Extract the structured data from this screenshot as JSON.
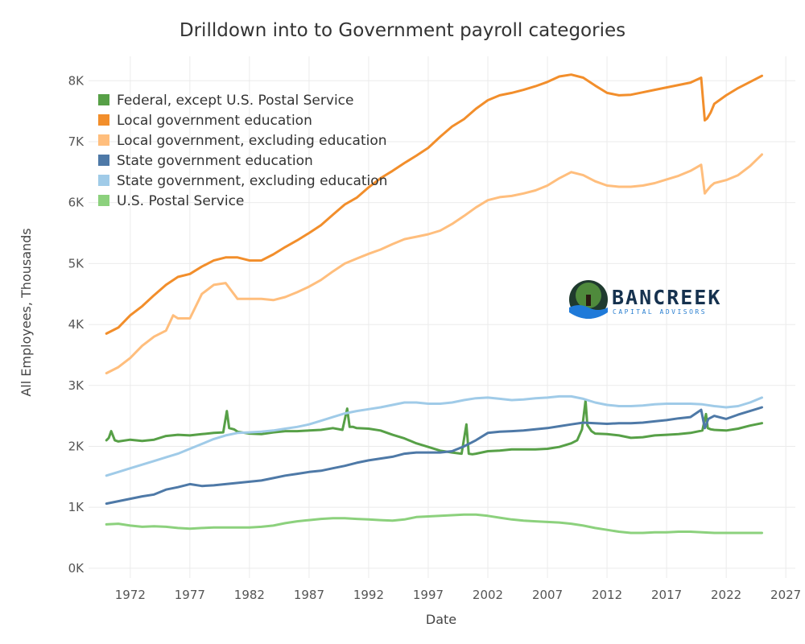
{
  "chart_data": {
    "type": "line",
    "title": "Drilldown into to Government payroll categories",
    "xlabel": "Date",
    "ylabel": "All Employees, Thousands",
    "xlim": [
      1968.5,
      2027.8
    ],
    "ylim": [
      -160,
      8400
    ],
    "x_ticks": [
      1972,
      1977,
      1982,
      1987,
      1992,
      1997,
      2002,
      2007,
      2012,
      2017,
      2022,
      2027
    ],
    "y_ticks": [
      {
        "value": 0,
        "label": "0K"
      },
      {
        "value": 1000,
        "label": "1K"
      },
      {
        "value": 2000,
        "label": "2K"
      },
      {
        "value": 3000,
        "label": "3K"
      },
      {
        "value": 4000,
        "label": "4K"
      },
      {
        "value": 5000,
        "label": "5K"
      },
      {
        "value": 6000,
        "label": "6K"
      },
      {
        "value": 7000,
        "label": "7K"
      },
      {
        "value": 8000,
        "label": "8K"
      }
    ],
    "grid": true,
    "legend_position": "top-left",
    "series": [
      {
        "name": "Federal, except U.S. Postal Service",
        "color": "#57a047",
        "x": [
          1970,
          1970.2,
          1970.4,
          1970.7,
          1971,
          1972,
          1973,
          1974,
          1975,
          1976,
          1977,
          1978,
          1979,
          1979.8,
          1980.1,
          1980.3,
          1980.7,
          1981,
          1982,
          1983,
          1984,
          1985,
          1986,
          1987,
          1988,
          1989,
          1989.8,
          1990.2,
          1990.4,
          1990.7,
          1991,
          1992,
          1993,
          1994,
          1995,
          1996,
          1997,
          1998,
          1999,
          1999.8,
          2000.2,
          2000.4,
          2000.7,
          2001,
          2002,
          2003,
          2004,
          2005,
          2006,
          2007,
          2008,
          2009,
          2009.5,
          2009.9,
          2010.2,
          2010.35,
          2010.7,
          2011,
          2012,
          2013,
          2014,
          2015,
          2016,
          2017,
          2018,
          2019,
          2020,
          2020.3,
          2020.45,
          2020.7,
          2021,
          2022,
          2023,
          2024,
          2025
        ],
        "y": [
          2100,
          2140,
          2250,
          2100,
          2080,
          2110,
          2090,
          2110,
          2170,
          2190,
          2180,
          2200,
          2220,
          2230,
          2580,
          2300,
          2280,
          2240,
          2210,
          2200,
          2230,
          2250,
          2250,
          2260,
          2270,
          2300,
          2270,
          2620,
          2320,
          2320,
          2300,
          2290,
          2260,
          2190,
          2130,
          2050,
          1990,
          1930,
          1900,
          1880,
          2360,
          1880,
          1870,
          1880,
          1920,
          1930,
          1950,
          1950,
          1950,
          1960,
          1990,
          2050,
          2100,
          2280,
          2750,
          2350,
          2250,
          2210,
          2200,
          2180,
          2140,
          2150,
          2180,
          2190,
          2200,
          2220,
          2260,
          2530,
          2300,
          2280,
          2270,
          2260,
          2290,
          2340,
          2380
        ]
      },
      {
        "name": "Local government education",
        "color": "#f28e2b",
        "x": [
          1970,
          1971,
          1972,
          1973,
          1974,
          1975,
          1976,
          1977,
          1978,
          1979,
          1980,
          1981,
          1982,
          1983,
          1984,
          1985,
          1986,
          1987,
          1988,
          1989,
          1990,
          1991,
          1992,
          1993,
          1994,
          1995,
          1996,
          1997,
          1998,
          1999,
          2000,
          2001,
          2002,
          2003,
          2004,
          2005,
          2006,
          2007,
          2008,
          2009,
          2010,
          2011,
          2012,
          2013,
          2014,
          2015,
          2016,
          2017,
          2018,
          2019,
          2019.9,
          2020.2,
          2020.4,
          2020.7,
          2021,
          2022,
          2023,
          2024,
          2025
        ],
        "y": [
          3850,
          3950,
          4150,
          4300,
          4480,
          4650,
          4780,
          4830,
          4950,
          5050,
          5100,
          5100,
          5050,
          5050,
          5150,
          5270,
          5380,
          5500,
          5630,
          5800,
          5970,
          6080,
          6250,
          6400,
          6520,
          6650,
          6770,
          6900,
          7080,
          7250,
          7370,
          7540,
          7680,
          7760,
          7800,
          7850,
          7910,
          7980,
          8070,
          8100,
          8050,
          7920,
          7800,
          7760,
          7770,
          7810,
          7850,
          7890,
          7930,
          7970,
          8050,
          7350,
          7380,
          7480,
          7620,
          7760,
          7880,
          7980,
          8080
        ]
      },
      {
        "name": "Local government, excluding education",
        "color": "#ffbe7d",
        "x": [
          1970,
          1971,
          1972,
          1973,
          1974,
          1975,
          1975.6,
          1976,
          1977,
          1978,
          1979,
          1980,
          1981,
          1982,
          1983,
          1984,
          1985,
          1986,
          1987,
          1988,
          1989,
          1990,
          1991,
          1992,
          1993,
          1994,
          1995,
          1996,
          1997,
          1998,
          1999,
          2000,
          2001,
          2002,
          2003,
          2004,
          2005,
          2006,
          2007,
          2008,
          2009,
          2010,
          2011,
          2012,
          2013,
          2014,
          2015,
          2016,
          2017,
          2018,
          2019,
          2019.9,
          2020.2,
          2020.4,
          2020.7,
          2021,
          2022,
          2023,
          2024,
          2025
        ],
        "y": [
          3200,
          3300,
          3450,
          3650,
          3800,
          3900,
          4150,
          4100,
          4100,
          4500,
          4650,
          4680,
          4420,
          4420,
          4420,
          4400,
          4450,
          4530,
          4620,
          4730,
          4870,
          5000,
          5080,
          5160,
          5230,
          5320,
          5400,
          5440,
          5480,
          5540,
          5650,
          5780,
          5920,
          6040,
          6090,
          6110,
          6150,
          6200,
          6280,
          6400,
          6500,
          6450,
          6350,
          6280,
          6260,
          6260,
          6280,
          6320,
          6380,
          6440,
          6520,
          6620,
          6150,
          6200,
          6270,
          6320,
          6370,
          6450,
          6600,
          6790
        ]
      },
      {
        "name": "State government education",
        "color": "#4e79a7",
        "x": [
          1970,
          1971,
          1972,
          1973,
          1974,
          1975,
          1976,
          1977,
          1978,
          1979,
          1980,
          1981,
          1982,
          1983,
          1984,
          1985,
          1986,
          1987,
          1988,
          1989,
          1990,
          1991,
          1992,
          1993,
          1994,
          1995,
          1996,
          1997,
          1998,
          1999,
          2000,
          2001,
          2002,
          2003,
          2004,
          2005,
          2006,
          2007,
          2008,
          2009,
          2010,
          2011,
          2012,
          2013,
          2014,
          2015,
          2016,
          2017,
          2018,
          2019,
          2019.9,
          2020.2,
          2020.5,
          2021,
          2022,
          2023,
          2024,
          2025
        ],
        "y": [
          1060,
          1100,
          1140,
          1180,
          1210,
          1290,
          1330,
          1380,
          1350,
          1360,
          1380,
          1400,
          1420,
          1440,
          1480,
          1520,
          1550,
          1580,
          1600,
          1640,
          1680,
          1730,
          1770,
          1800,
          1830,
          1880,
          1900,
          1900,
          1900,
          1920,
          2000,
          2100,
          2220,
          2240,
          2250,
          2260,
          2280,
          2300,
          2330,
          2360,
          2390,
          2380,
          2370,
          2380,
          2380,
          2390,
          2410,
          2430,
          2460,
          2480,
          2600,
          2300,
          2450,
          2500,
          2450,
          2520,
          2580,
          2640
        ]
      },
      {
        "name": "State government, excluding education",
        "color": "#a0cbe8",
        "x": [
          1970,
          1971,
          1972,
          1973,
          1974,
          1975,
          1976,
          1977,
          1978,
          1979,
          1980,
          1981,
          1982,
          1983,
          1984,
          1985,
          1986,
          1987,
          1988,
          1989,
          1990,
          1991,
          1992,
          1993,
          1994,
          1995,
          1996,
          1997,
          1998,
          1999,
          2000,
          2001,
          2002,
          2003,
          2004,
          2005,
          2006,
          2007,
          2008,
          2009,
          2010,
          2011,
          2012,
          2013,
          2014,
          2015,
          2016,
          2017,
          2018,
          2019,
          2020,
          2021,
          2022,
          2023,
          2024,
          2025
        ],
        "y": [
          1520,
          1580,
          1640,
          1700,
          1760,
          1820,
          1880,
          1960,
          2040,
          2120,
          2180,
          2220,
          2230,
          2240,
          2260,
          2290,
          2320,
          2360,
          2420,
          2480,
          2540,
          2580,
          2610,
          2640,
          2680,
          2720,
          2720,
          2700,
          2700,
          2720,
          2760,
          2790,
          2800,
          2780,
          2760,
          2770,
          2790,
          2800,
          2820,
          2820,
          2780,
          2720,
          2680,
          2660,
          2660,
          2670,
          2690,
          2700,
          2700,
          2700,
          2690,
          2660,
          2640,
          2660,
          2720,
          2800
        ]
      },
      {
        "name": "U.S. Postal Service",
        "color": "#8cd17d",
        "x": [
          1970,
          1971,
          1972,
          1973,
          1974,
          1975,
          1976,
          1977,
          1978,
          1979,
          1980,
          1981,
          1982,
          1983,
          1984,
          1985,
          1986,
          1987,
          1988,
          1989,
          1990,
          1991,
          1992,
          1993,
          1994,
          1995,
          1996,
          1997,
          1998,
          1999,
          2000,
          2001,
          2002,
          2003,
          2004,
          2005,
          2006,
          2007,
          2008,
          2009,
          2010,
          2011,
          2012,
          2013,
          2014,
          2015,
          2016,
          2017,
          2018,
          2019,
          2020,
          2021,
          2022,
          2023,
          2024,
          2025
        ],
        "y": [
          720,
          730,
          700,
          680,
          690,
          680,
          660,
          650,
          660,
          670,
          670,
          670,
          670,
          680,
          700,
          740,
          770,
          790,
          810,
          820,
          820,
          810,
          800,
          790,
          780,
          800,
          840,
          850,
          860,
          870,
          880,
          880,
          860,
          830,
          800,
          780,
          770,
          760,
          750,
          730,
          700,
          660,
          630,
          600,
          580,
          580,
          590,
          590,
          600,
          600,
          590,
          580,
          580,
          580,
          580,
          580
        ]
      }
    ]
  },
  "logo": {
    "word": "BANCREEK",
    "tagline": "CAPITAL ADVISORS"
  }
}
